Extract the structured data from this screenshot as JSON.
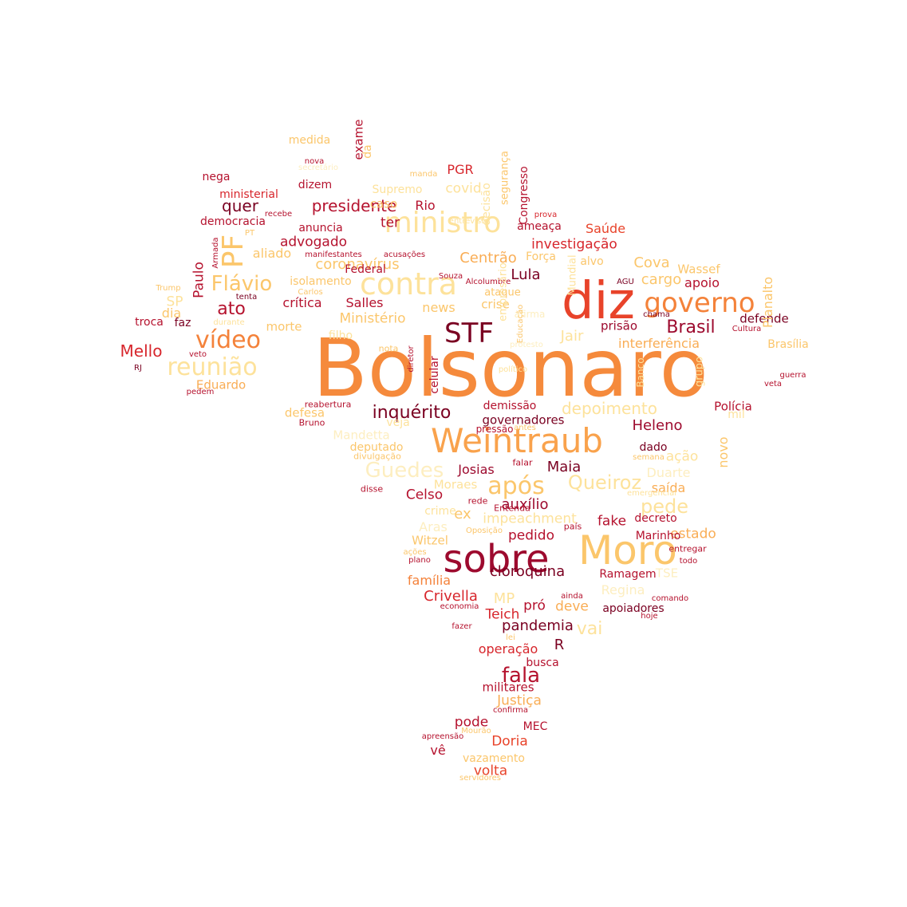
{
  "palette": {
    "dark_red": "#7a0021",
    "crimson": "#b5122e",
    "red": "#d7262c",
    "red_orange": "#e8432a",
    "orange": "#f4823a",
    "light_orange": "#f9ad55",
    "gold": "#fbc66b",
    "pale": "#fde29b",
    "faint": "#fdeec0"
  },
  "words": [
    {
      "text": "Bolsonaro",
      "size": 100,
      "color": "#f58a3c"
    },
    {
      "text": "diz",
      "size": 64,
      "color": "#e8432a"
    },
    {
      "text": "Weintraub",
      "size": 42,
      "color": "#f9a24c"
    },
    {
      "text": "sobre",
      "size": 48,
      "color": "#9d0a2e"
    },
    {
      "text": "Moro",
      "size": 50,
      "color": "#fbc66b"
    },
    {
      "text": "ministro",
      "size": 36,
      "color": "#fde29b"
    },
    {
      "text": "contra",
      "size": 38,
      "color": "#fde29b"
    },
    {
      "text": "STF",
      "size": 34,
      "color": "#7a0021"
    },
    {
      "text": "governo",
      "size": 34,
      "color": "#f4823a"
    },
    {
      "text": "PF",
      "size": 36,
      "color": "#fbc66b"
    },
    {
      "text": "vídeo",
      "size": 30,
      "color": "#f4823a"
    },
    {
      "text": "reunião",
      "size": 30,
      "color": "#fde29b"
    },
    {
      "text": "Flávio",
      "size": 26,
      "color": "#fbc66b"
    },
    {
      "text": "após",
      "size": 30,
      "color": "#fbc66b"
    },
    {
      "text": "Guedes",
      "size": 26,
      "color": "#fdeec0"
    },
    {
      "text": "inquérito",
      "size": 22,
      "color": "#7a0021"
    },
    {
      "text": "Brasil",
      "size": 22,
      "color": "#9d0a2e"
    },
    {
      "text": "Queiroz",
      "size": 24,
      "color": "#fde29b"
    },
    {
      "text": "pede",
      "size": 24,
      "color": "#fde29b"
    },
    {
      "text": "fala",
      "size": 26,
      "color": "#b5122e"
    },
    {
      "text": "Mello",
      "size": 20,
      "color": "#d7262c"
    },
    {
      "text": "ato",
      "size": 22,
      "color": "#b5122e"
    },
    {
      "text": "presidente",
      "size": 20,
      "color": "#b5122e"
    },
    {
      "text": "quer",
      "size": 20,
      "color": "#7a0021"
    },
    {
      "text": "depoimento",
      "size": 20,
      "color": "#fde29b"
    },
    {
      "text": "Heleno",
      "size": 18,
      "color": "#9d0a2e"
    },
    {
      "text": "Lula",
      "size": 18,
      "color": "#7a0021"
    },
    {
      "text": "Centrão",
      "size": 18,
      "color": "#f9ad55"
    },
    {
      "text": "coronavírus",
      "size": 18,
      "color": "#fbc66b"
    },
    {
      "text": "advogado",
      "size": 17,
      "color": "#b5122e"
    },
    {
      "text": "investigação",
      "size": 17,
      "color": "#d7262c"
    },
    {
      "text": "Saúde",
      "size": 16,
      "color": "#e8432a"
    },
    {
      "text": "Cova",
      "size": 18,
      "color": "#fbc66b"
    },
    {
      "text": "cargo",
      "size": 18,
      "color": "#fbc66b"
    },
    {
      "text": "apoio",
      "size": 16,
      "color": "#b5122e"
    },
    {
      "text": "Wassef",
      "size": 15,
      "color": "#fbc66b"
    },
    {
      "text": "Ministério",
      "size": 17,
      "color": "#fbc66b"
    },
    {
      "text": "Salles",
      "size": 16,
      "color": "#b5122e"
    },
    {
      "text": "crítica",
      "size": 16,
      "color": "#b5122e"
    },
    {
      "text": "news",
      "size": 16,
      "color": "#fbc66b"
    },
    {
      "text": "morte",
      "size": 15,
      "color": "#fbc66b"
    },
    {
      "text": "Jair",
      "size": 18,
      "color": "#fde29b"
    },
    {
      "text": "interferência",
      "size": 16,
      "color": "#f9ad55"
    },
    {
      "text": "prisão",
      "size": 15,
      "color": "#9d0a2e"
    },
    {
      "text": "defende",
      "size": 15,
      "color": "#7a0021"
    },
    {
      "text": "Eduardo",
      "size": 15,
      "color": "#f9ad55"
    },
    {
      "text": "defesa",
      "size": 15,
      "color": "#fbc66b"
    },
    {
      "text": "demissão",
      "size": 14,
      "color": "#b5122e"
    },
    {
      "text": "governadores",
      "size": 15,
      "color": "#7a0021"
    },
    {
      "text": "Polícia",
      "size": 15,
      "color": "#b5122e"
    },
    {
      "text": "Mandetta",
      "size": 15,
      "color": "#fdeec0"
    },
    {
      "text": "deputado",
      "size": 14,
      "color": "#fbc66b"
    },
    {
      "text": "Josias",
      "size": 16,
      "color": "#9d0a2e"
    },
    {
      "text": "Maia",
      "size": 18,
      "color": "#7a0021"
    },
    {
      "text": "dado",
      "size": 14,
      "color": "#7a0021"
    },
    {
      "text": "ação",
      "size": 17,
      "color": "#fde29b"
    },
    {
      "text": "Duarte",
      "size": 16,
      "color": "#fdeec0"
    },
    {
      "text": "saída",
      "size": 16,
      "color": "#f9ad55"
    },
    {
      "text": "Celso",
      "size": 17,
      "color": "#b5122e"
    },
    {
      "text": "Moraes",
      "size": 15,
      "color": "#fde29b"
    },
    {
      "text": "auxílio",
      "size": 18,
      "color": "#9d0a2e"
    },
    {
      "text": "crime",
      "size": 14,
      "color": "#fde29b"
    },
    {
      "text": "ex",
      "size": 18,
      "color": "#fbc66b"
    },
    {
      "text": "impeachment",
      "size": 17,
      "color": "#fde29b"
    },
    {
      "text": "Aras",
      "size": 16,
      "color": "#fdeec0"
    },
    {
      "text": "fake",
      "size": 17,
      "color": "#b5122e"
    },
    {
      "text": "decreto",
      "size": 14,
      "color": "#b5122e"
    },
    {
      "text": "estado",
      "size": 17,
      "color": "#f9ad55"
    },
    {
      "text": "pedido",
      "size": 17,
      "color": "#b5122e"
    },
    {
      "text": "Marinho",
      "size": 14,
      "color": "#b5122e"
    },
    {
      "text": "Witzel",
      "size": 15,
      "color": "#fbc66b"
    },
    {
      "text": "cloroquina",
      "size": 18,
      "color": "#7a0021"
    },
    {
      "text": "Ramagem",
      "size": 14,
      "color": "#b5122e"
    },
    {
      "text": "TSE",
      "size": 15,
      "color": "#fdeec0"
    },
    {
      "text": "família",
      "size": 16,
      "color": "#f4823a"
    },
    {
      "text": "Crivella",
      "size": 18,
      "color": "#d7262c"
    },
    {
      "text": "MP",
      "size": 18,
      "color": "#fde29b"
    },
    {
      "text": "Regina",
      "size": 16,
      "color": "#fdeec0"
    },
    {
      "text": "Teich",
      "size": 17,
      "color": "#d7262c"
    },
    {
      "text": "pró",
      "size": 17,
      "color": "#b5122e"
    },
    {
      "text": "deve",
      "size": 17,
      "color": "#f9ad55"
    },
    {
      "text": "apoiadores",
      "size": 14,
      "color": "#7a0021"
    },
    {
      "text": "pandemia",
      "size": 18,
      "color": "#7a0021"
    },
    {
      "text": "vai",
      "size": 22,
      "color": "#fde29b"
    },
    {
      "text": "operação",
      "size": 16,
      "color": "#d7262c"
    },
    {
      "text": "R",
      "size": 18,
      "color": "#7a0021"
    },
    {
      "text": "busca",
      "size": 14,
      "color": "#b5122e"
    },
    {
      "text": "militares",
      "size": 15,
      "color": "#b5122e"
    },
    {
      "text": "Justiça",
      "size": 17,
      "color": "#f9ad55"
    },
    {
      "text": "pode",
      "size": 17,
      "color": "#b5122e"
    },
    {
      "text": "MEC",
      "size": 14,
      "color": "#b5122e"
    },
    {
      "text": "Doria",
      "size": 17,
      "color": "#e8432a"
    },
    {
      "text": "vê",
      "size": 16,
      "color": "#b5122e"
    },
    {
      "text": "vazamento",
      "size": 14,
      "color": "#fbc66b"
    },
    {
      "text": "volta",
      "size": 17,
      "color": "#e8432a"
    },
    {
      "text": "covid",
      "size": 17,
      "color": "#fde29b"
    },
    {
      "text": "caso",
      "size": 15,
      "color": "#fbc66b"
    },
    {
      "text": "Rio",
      "size": 16,
      "color": "#b5122e"
    },
    {
      "text": "PGR",
      "size": 16,
      "color": "#d7262c"
    },
    {
      "text": "Supremo",
      "size": 14,
      "color": "#fde29b"
    },
    {
      "text": "dizem",
      "size": 14,
      "color": "#b5122e"
    },
    {
      "text": "ministerial",
      "size": 14,
      "color": "#d7262c"
    },
    {
      "text": "nega",
      "size": 14,
      "color": "#b5122e"
    },
    {
      "text": "medida",
      "size": 14,
      "color": "#fbc66b"
    },
    {
      "text": "democracia",
      "size": 14,
      "color": "#b5122e"
    },
    {
      "text": "anuncia",
      "size": 14,
      "color": "#b5122e"
    },
    {
      "text": "ter",
      "size": 17,
      "color": "#b5122e"
    },
    {
      "text": "aliado",
      "size": 16,
      "color": "#fbc66b"
    },
    {
      "text": "Federal",
      "size": 14,
      "color": "#b5122e"
    },
    {
      "text": "isolamento",
      "size": 14,
      "color": "#fbc66b"
    },
    {
      "text": "ameaça",
      "size": 14,
      "color": "#b5122e"
    },
    {
      "text": "Força",
      "size": 14,
      "color": "#fbc66b"
    },
    {
      "text": "ataque",
      "size": 13,
      "color": "#fbc66b"
    },
    {
      "text": "crise",
      "size": 15,
      "color": "#fbc66b"
    },
    {
      "text": "alvo",
      "size": 14,
      "color": "#fbc66b"
    },
    {
      "text": "SP",
      "size": 17,
      "color": "#fde29b"
    },
    {
      "text": "faz",
      "size": 14,
      "color": "#7a0021"
    },
    {
      "text": "troca",
      "size": 14,
      "color": "#b5122e"
    },
    {
      "text": "dia",
      "size": 16,
      "color": "#fbc66b"
    },
    {
      "text": "filho",
      "size": 14,
      "color": "#fde29b"
    },
    {
      "text": "Brasília",
      "size": 14,
      "color": "#fbc66b"
    },
    {
      "text": "mil",
      "size": 14,
      "color": "#fde29b"
    },
    {
      "text": "pressão",
      "size": 12,
      "color": "#b5122e"
    },
    {
      "text": "veja",
      "size": 14,
      "color": "#fde29b"
    },
    {
      "text": "Bruno",
      "size": 11,
      "color": "#b5122e"
    },
    {
      "text": "reabertura",
      "size": 11,
      "color": "#b5122e"
    },
    {
      "text": "divulgação",
      "size": 11,
      "color": "#fbc66b"
    },
    {
      "text": "falar",
      "size": 11,
      "color": "#b5122e"
    },
    {
      "text": "disse",
      "size": 11,
      "color": "#b5122e"
    },
    {
      "text": "rede",
      "size": 11,
      "color": "#b5122e"
    },
    {
      "text": "Entenda",
      "size": 11,
      "color": "#b5122e"
    },
    {
      "text": "país",
      "size": 11,
      "color": "#b5122e"
    },
    {
      "text": "entregar",
      "size": 11,
      "color": "#b5122e"
    },
    {
      "text": "todo",
      "size": 10,
      "color": "#b5122e"
    },
    {
      "text": "ações",
      "size": 10,
      "color": "#fbc66b"
    },
    {
      "text": "plano",
      "size": 10,
      "color": "#b5122e"
    },
    {
      "text": "ainda",
      "size": 10,
      "color": "#b5122e"
    },
    {
      "text": "comando",
      "size": 10,
      "color": "#b5122e"
    },
    {
      "text": "hoje",
      "size": 10,
      "color": "#b5122e"
    },
    {
      "text": "economia",
      "size": 10,
      "color": "#b5122e"
    },
    {
      "text": "fazer",
      "size": 10,
      "color": "#b5122e"
    },
    {
      "text": "lei",
      "size": 10,
      "color": "#fbc66b"
    },
    {
      "text": "confirma",
      "size": 10,
      "color": "#b5122e"
    },
    {
      "text": "Mourão",
      "size": 10,
      "color": "#fbc66b"
    },
    {
      "text": "apreensão",
      "size": 10,
      "color": "#b5122e"
    },
    {
      "text": "servidores",
      "size": 10,
      "color": "#fbc66b"
    },
    {
      "text": "antes",
      "size": 10,
      "color": "#fbc66b"
    },
    {
      "text": "semana",
      "size": 10,
      "color": "#fbc66b"
    },
    {
      "text": "emergencial",
      "size": 10,
      "color": "#fde29b"
    },
    {
      "text": "Oposição",
      "size": 10,
      "color": "#fbc66b"
    },
    {
      "text": "político",
      "size": 10,
      "color": "#fde29b"
    },
    {
      "text": "protesto",
      "size": 10,
      "color": "#fdeec0"
    },
    {
      "text": "nota",
      "size": 11,
      "color": "#fbc66b"
    },
    {
      "text": "diretor",
      "size": 10,
      "color": "#b5122e"
    },
    {
      "text": "RJ",
      "size": 10,
      "color": "#7a0021"
    },
    {
      "text": "pedem",
      "size": 10,
      "color": "#b5122e"
    },
    {
      "text": "veto",
      "size": 10,
      "color": "#b5122e"
    },
    {
      "text": "Trump",
      "size": 10,
      "color": "#fbc66b"
    },
    {
      "text": "durante",
      "size": 10,
      "color": "#fde29b"
    },
    {
      "text": "tenta",
      "size": 10,
      "color": "#7a0021"
    },
    {
      "text": "Carlos",
      "size": 10,
      "color": "#fbc66b"
    },
    {
      "text": "manifestantes",
      "size": 10,
      "color": "#b5122e"
    },
    {
      "text": "acusações",
      "size": 10,
      "color": "#b5122e"
    },
    {
      "text": "Souza",
      "size": 10,
      "color": "#b5122e"
    },
    {
      "text": "Alcolumbre",
      "size": 10,
      "color": "#b5122e"
    },
    {
      "text": "AGU",
      "size": 10,
      "color": "#7a0021"
    },
    {
      "text": "chama",
      "size": 10,
      "color": "#7a0021"
    },
    {
      "text": "Cultura",
      "size": 10,
      "color": "#b5122e"
    },
    {
      "text": "guerra",
      "size": 10,
      "color": "#b5122e"
    },
    {
      "text": "veta",
      "size": 10,
      "color": "#b5122e"
    },
    {
      "text": "PT",
      "size": 10,
      "color": "#fbc66b"
    },
    {
      "text": "recebe",
      "size": 10,
      "color": "#b5122e"
    },
    {
      "text": "secretário",
      "size": 10,
      "color": "#fdeec0"
    },
    {
      "text": "nova",
      "size": 10,
      "color": "#b5122e"
    },
    {
      "text": "manda",
      "size": 10,
      "color": "#fbc66b"
    },
    {
      "text": "prova",
      "size": 10,
      "color": "#d7262c"
    },
    {
      "text": "entrevista",
      "size": 10,
      "color": "#fde29b"
    },
    {
      "text": "afirma",
      "size": 12,
      "color": "#fdeec0"
    },
    {
      "text": "da",
      "size": 14,
      "color": "#fbc66b"
    },
    {
      "text": "exame",
      "size": 15,
      "color": "#b5122e"
    },
    {
      "text": "segurança",
      "size": 13,
      "color": "#fbc66b"
    },
    {
      "text": "Congresso",
      "size": 14,
      "color": "#b5122e"
    },
    {
      "text": "Paulo",
      "size": 17,
      "color": "#b5122e"
    },
    {
      "text": "celular",
      "size": 14,
      "color": "#b5122e"
    },
    {
      "text": "empresário",
      "size": 13,
      "color": "#fde29b"
    },
    {
      "text": "Mundial",
      "size": 13,
      "color": "#fde29b"
    },
    {
      "text": "Banco",
      "size": 12,
      "color": "#fde29b"
    },
    {
      "text": "grupo",
      "size": 13,
      "color": "#fde29b"
    },
    {
      "text": "Planalto",
      "size": 16,
      "color": "#fbc66b"
    },
    {
      "text": "novo",
      "size": 16,
      "color": "#fbc66b"
    },
    {
      "text": "decisão",
      "size": 14,
      "color": "#fde29b"
    },
    {
      "text": "Educação",
      "size": 10,
      "color": "#fbc66b"
    },
    {
      "text": "Armada",
      "size": 10,
      "color": "#b5122e"
    },
    {
      "text": "público",
      "size": 10,
      "color": "#fde29b"
    }
  ]
}
